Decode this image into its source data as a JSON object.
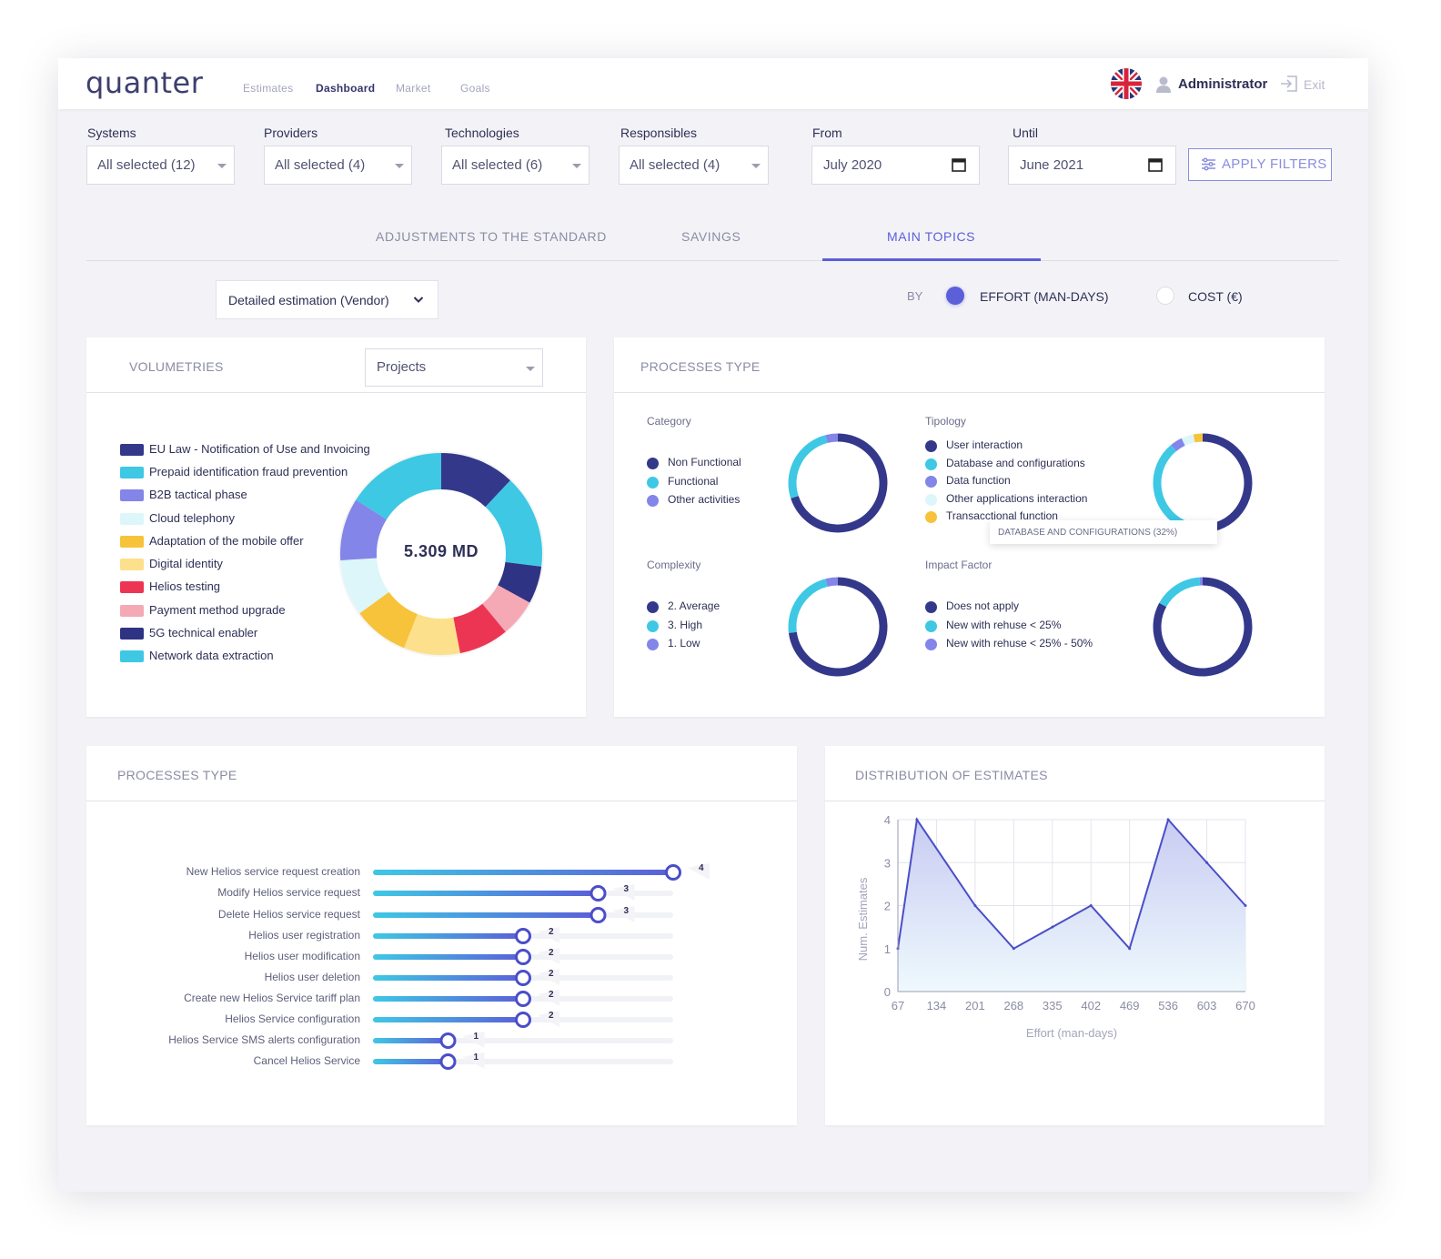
{
  "app": {
    "logo": "quanter",
    "nav": [
      "Estimates",
      "Dashboard",
      "Market",
      "Goals"
    ],
    "active_nav": "Dashboard",
    "user": "Administrator",
    "exit": "Exit"
  },
  "filters": {
    "systems": {
      "label": "Systems",
      "value": "All selected (12)"
    },
    "providers": {
      "label": "Providers",
      "value": "All selected (4)"
    },
    "technologies": {
      "label": "Technologies",
      "value": "All selected (6)"
    },
    "responsibles": {
      "label": "Responsibles",
      "value": "All selected (4)"
    },
    "from": {
      "label": "From",
      "value": "July 2020"
    },
    "until": {
      "label": "Until",
      "value": "June 2021"
    },
    "apply": "APPLY FILTERS"
  },
  "tabs": [
    "ADJUSTMENTS TO THE STANDARD",
    "SAVINGS",
    "MAIN TOPICS"
  ],
  "active_tab": "MAIN TOPICS",
  "estimation_select": "Detailed estimation (Vendor)",
  "by": {
    "label": "BY",
    "effort": "EFFORT (MAN-DAYS)",
    "cost": "COST (€)",
    "selected": "effort"
  },
  "volumetries": {
    "title": "VOLUMETRIES",
    "select": "Projects",
    "center_label": "5.309 MD",
    "items": [
      {
        "label": "EU Law - Notification of Use and Invoicing",
        "color": "#34388a",
        "value": 12
      },
      {
        "label": "Prepaid identification fraud prevention",
        "color": "#3ec8e4",
        "value": 15
      },
      {
        "label": "B2B tactical phase",
        "color": "#2f3383",
        "value": 6
      },
      {
        "label": "Cloud telephony",
        "color": "#f4a9b4",
        "value": 6
      },
      {
        "label": "Adaptation of the mobile offer",
        "color": "#ec3553",
        "value": 8
      },
      {
        "label": "Digital identity",
        "color": "#fde08c",
        "value": 9
      },
      {
        "label": "Helios testing",
        "color": "#f7c33a",
        "value": 9
      },
      {
        "label": "Payment method upgrade",
        "color": "#dcf6fa",
        "value": 9
      },
      {
        "label": "5G technical enabler",
        "color": "#8385e8",
        "value": 10
      },
      {
        "label": "Network data extraction",
        "color": "#3ec8e4",
        "value": 16
      }
    ],
    "legend_colors": [
      "#34388a",
      "#3ec8e4",
      "#8385e8",
      "#dcf6fa",
      "#f7c33a",
      "#fde08c",
      "#ec3553",
      "#f4a9b4",
      "#2f3383",
      "#3ec8e4"
    ]
  },
  "processes_type": {
    "title": "PROCESSES TYPE",
    "category": {
      "title": "Category",
      "items": [
        {
          "label": "Non Functional",
          "color": "#34388a",
          "value": 70
        },
        {
          "label": "Functional",
          "color": "#3ec8e4",
          "value": 26
        },
        {
          "label": "Other activities",
          "color": "#8385e8",
          "value": 4
        }
      ]
    },
    "tipology": {
      "title": "Tipology",
      "items": [
        {
          "label": "User interaction",
          "color": "#34388a",
          "value": 57
        },
        {
          "label": "Database and configurations",
          "color": "#3ec8e4",
          "value": 32
        },
        {
          "label": "Data function",
          "color": "#8385e8",
          "value": 4
        },
        {
          "label": "Other applications interaction",
          "color": "#dcf6fa",
          "value": 4
        },
        {
          "label": "Transacctional  function",
          "color": "#f7c33a",
          "value": 3
        }
      ],
      "tooltip": "DATABASE AND CONFIGURATIONS (32%)"
    },
    "complexity": {
      "title": "Complexity",
      "items": [
        {
          "label": "2. Average",
          "color": "#34388a",
          "value": 73
        },
        {
          "label": "3. High",
          "color": "#3ec8e4",
          "value": 23
        },
        {
          "label": "1. Low",
          "color": "#8385e8",
          "value": 4
        }
      ]
    },
    "impact": {
      "title": "Impact Factor",
      "items": [
        {
          "label": "Does not apply",
          "color": "#34388a",
          "value": 83
        },
        {
          "label": "New with rehuse < 25%",
          "color": "#3ec8e4",
          "value": 16
        },
        {
          "label": "New with rehuse < 25% - 50%",
          "color": "#8385e8",
          "value": 1
        }
      ]
    }
  },
  "processes_bars": {
    "title": "PROCESSES TYPE",
    "max": 4,
    "items": [
      {
        "label": "New Helios service request creation",
        "value": 4
      },
      {
        "label": "Modify Helios service request",
        "value": 3
      },
      {
        "label": "Delete Helios service request",
        "value": 3
      },
      {
        "label": "Helios user registration",
        "value": 2
      },
      {
        "label": "Helios user modification",
        "value": 2
      },
      {
        "label": "Helios user deletion",
        "value": 2
      },
      {
        "label": "Create new Helios Service tariff plan",
        "value": 2
      },
      {
        "label": "Helios Service configuration",
        "value": 2
      },
      {
        "label": "Helios Service SMS alerts configuration",
        "value": 1
      },
      {
        "label": "Cancel Helios Service",
        "value": 1
      }
    ]
  },
  "distribution": {
    "title": "DISTRIBUTION OF ESTIMATES",
    "chart_data": {
      "type": "area",
      "x": [
        67,
        134,
        201,
        268,
        335,
        402,
        469,
        536,
        603,
        670
      ],
      "points": [
        [
          67,
          1
        ],
        [
          100,
          4
        ],
        [
          201,
          2
        ],
        [
          268,
          1
        ],
        [
          335,
          1.5
        ],
        [
          402,
          2
        ],
        [
          469,
          1
        ],
        [
          536,
          4
        ],
        [
          603,
          3
        ],
        [
          670,
          2
        ]
      ],
      "xticks": [
        "67",
        "134",
        "201",
        "268",
        "335",
        "402",
        "469",
        "536",
        "603",
        "670"
      ],
      "yticks": [
        "0",
        "1",
        "2",
        "3",
        "4"
      ],
      "xlabel": "Effort (man-days)",
      "ylabel": "Num. Estimates",
      "xlim": [
        67,
        670
      ],
      "ylim": [
        0,
        4
      ],
      "grid": true
    }
  }
}
